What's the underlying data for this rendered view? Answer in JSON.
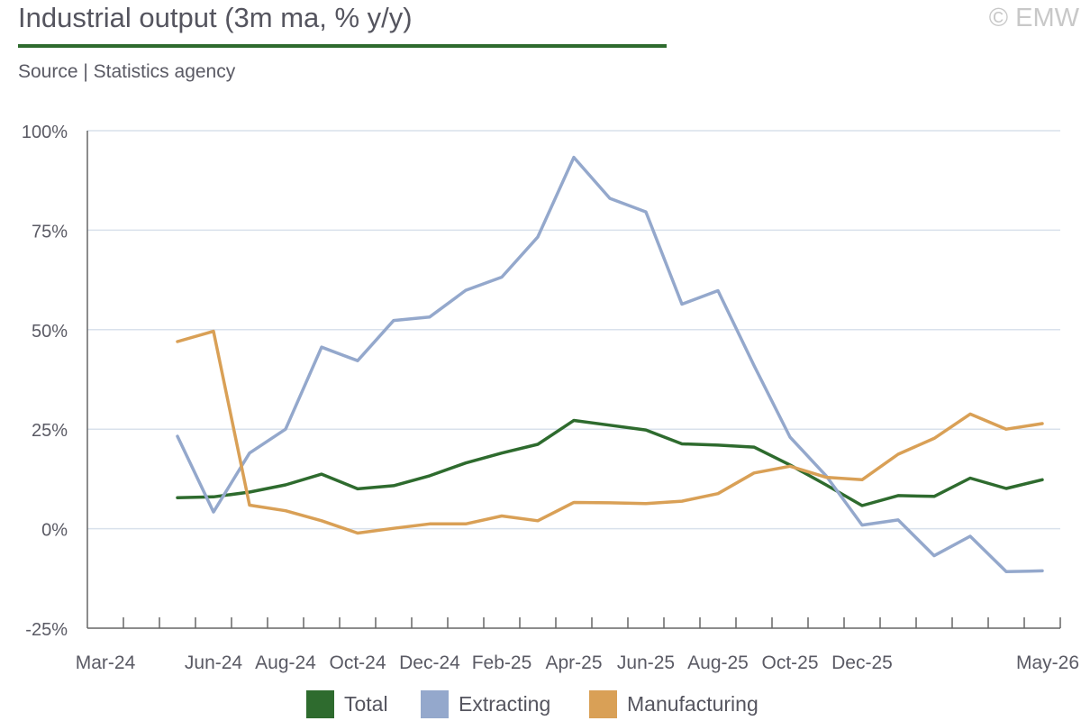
{
  "header": {
    "title": "Industrial output (3m ma, % y/y)",
    "subtitle": "Source | Statistics agency",
    "copyright": "© EMW"
  },
  "colors": {
    "accent": "#2e6b2e",
    "total": "#2e6b2e",
    "extracting": "#94a8cc",
    "manufacturing": "#d9a056",
    "grid": "#d9e1ec",
    "axis": "#666666"
  },
  "chart_data": {
    "type": "line",
    "title": "Industrial output (3m ma, % y/y)",
    "subtitle": "Source | Statistics agency",
    "x": [
      "Mar-24",
      "Apr-24",
      "May-24",
      "Jun-24",
      "Jul-24",
      "Aug-24",
      "Sep-24",
      "Oct-24",
      "Nov-24",
      "Dec-24",
      "Jan-25",
      "Feb-25",
      "Mar-25",
      "Apr-25",
      "May-25",
      "Jun-25",
      "Jul-25",
      "Aug-25",
      "Sep-25",
      "Oct-25",
      "Nov-25",
      "Dec-25",
      "Jan-26",
      "Feb-26",
      "Mar-26",
      "Apr-26",
      "May-26"
    ],
    "x_tick_labels": [
      "Mar-24",
      "",
      "",
      "Jun-24",
      "",
      "Aug-24",
      "",
      "Oct-24",
      "",
      "Dec-24",
      "",
      "Feb-25",
      "",
      "Apr-25",
      "",
      "Jun-25",
      "",
      "Aug-25",
      "",
      "Oct-25",
      "",
      "Dec-25",
      "",
      "",
      "",
      "",
      "May-26"
    ],
    "ylim": [
      -25,
      100
    ],
    "yticks": [
      -25,
      0,
      25,
      50,
      75,
      100
    ],
    "ytick_labels": [
      "-25%",
      "0%",
      "25%",
      "50%",
      "75%",
      "100%"
    ],
    "grid": true,
    "legend": "bottom",
    "series": [
      {
        "name": "Total",
        "color": "#2e6b2e",
        "values": [
          null,
          null,
          7.8,
          8.0,
          9.2,
          11.0,
          13.7,
          10.0,
          10.8,
          13.3,
          16.5,
          19.0,
          21.2,
          27.2,
          26.0,
          24.8,
          21.3,
          21.0,
          20.5,
          16.0,
          11.0,
          5.8,
          8.3,
          8.1,
          12.7,
          10.1,
          12.3
        ]
      },
      {
        "name": "Extracting",
        "color": "#94a8cc",
        "values": [
          null,
          null,
          23.2,
          4.2,
          19.0,
          25.0,
          45.6,
          42.2,
          52.3,
          53.2,
          59.9,
          63.2,
          73.3,
          93.3,
          83.0,
          79.6,
          56.4,
          59.8,
          41.0,
          23.0,
          13.3,
          0.9,
          2.2,
          -6.8,
          -1.9,
          -10.8,
          -10.6
        ]
      },
      {
        "name": "Manufacturing",
        "color": "#d9a056",
        "values": [
          null,
          null,
          47.0,
          49.6,
          5.9,
          4.5,
          2.0,
          -1.1,
          0.1,
          1.2,
          1.2,
          3.2,
          2.0,
          6.6,
          6.5,
          6.3,
          6.9,
          8.8,
          14.0,
          15.7,
          12.9,
          12.3,
          18.7,
          22.7,
          28.8,
          25.0,
          26.4
        ]
      }
    ]
  },
  "legend": {
    "items": [
      {
        "label": "Total"
      },
      {
        "label": "Extracting"
      },
      {
        "label": "Manufacturing"
      }
    ]
  }
}
